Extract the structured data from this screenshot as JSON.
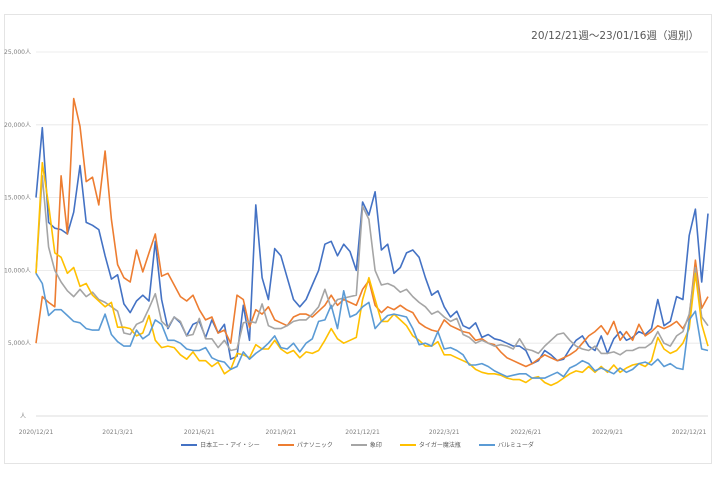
{
  "chart_data": {
    "type": "line",
    "title": "20/12/21週〜23/01/16週（週別）",
    "xlabel": "",
    "ylabel": "",
    "y_unit_suffix": "人",
    "ylim": [
      0,
      25000
    ],
    "yticks": [
      "人",
      "5,000人",
      "10,000人",
      "15,000人",
      "20,000人",
      "25,000人"
    ],
    "ytick_values": [
      0,
      5000,
      10000,
      15000,
      20000,
      25000
    ],
    "x_frequency": "weekly",
    "x_start": "2020/12/21",
    "xticks": [
      {
        "week_index": 0,
        "label": "2020/12/21"
      },
      {
        "week_index": 13,
        "label": "2021/3/21"
      },
      {
        "week_index": 26,
        "label": "2021/6/21"
      },
      {
        "week_index": 39,
        "label": "2021/9/21"
      },
      {
        "week_index": 52,
        "label": "2021/12/21"
      },
      {
        "week_index": 65,
        "label": "2022/3/21"
      },
      {
        "week_index": 78,
        "label": "2022/6/21"
      },
      {
        "week_index": 91,
        "label": "2022/9/21"
      },
      {
        "week_index": 104,
        "label": "2022/12/21"
      }
    ],
    "grid": true,
    "legend_position": "bottom",
    "series": [
      {
        "name": "日本エー・アイ・シー",
        "color": "#4472C4",
        "values_thousands": [
          15.0,
          19.8,
          13.3,
          12.9,
          12.8,
          12.5,
          14.0,
          17.2,
          13.3,
          13.1,
          12.8,
          11.0,
          9.4,
          9.7,
          7.7,
          7.1,
          7.9,
          8.3,
          7.9,
          12.0,
          8.0,
          6.0,
          6.8,
          6.4,
          5.5,
          6.3,
          6.5,
          5.4,
          6.6,
          5.7,
          6.3,
          3.9,
          4.1,
          7.6,
          5.2,
          14.5,
          9.5,
          8.0,
          11.5,
          11.0,
          9.5,
          8.0,
          7.5,
          8.0,
          9.0,
          10.0,
          11.8,
          12.0,
          11.0,
          11.8,
          11.3,
          10.0,
          14.7,
          13.8,
          15.4,
          11.4,
          11.8,
          9.8,
          10.2,
          11.2,
          11.4,
          10.9,
          9.5,
          8.3,
          8.6,
          7.5,
          6.8,
          7.2,
          6.2,
          6.0,
          6.4,
          5.4,
          5.6,
          5.3,
          5.2,
          5.0,
          4.8,
          4.8,
          4.5,
          3.6,
          3.8,
          4.5,
          4.2,
          3.8,
          3.9,
          4.6,
          5.2,
          5.5,
          4.8,
          4.5,
          5.5,
          4.3,
          5.3,
          5.8,
          5.2,
          5.4,
          5.8,
          5.6,
          6.0,
          8.0,
          6.2,
          6.5,
          8.2,
          8.0,
          12.4,
          14.2,
          9.2,
          13.9
        ]
      },
      {
        "name": "パナソニック",
        "color": "#ED7D31",
        "values_thousands": [
          5.0,
          8.2,
          7.8,
          7.5,
          16.5,
          12.5,
          21.8,
          19.9,
          16.1,
          16.4,
          14.5,
          18.2,
          13.5,
          10.4,
          9.5,
          9.2,
          11.4,
          9.9,
          11.2,
          12.5,
          9.6,
          9.8,
          9.0,
          8.2,
          7.9,
          8.3,
          7.3,
          6.6,
          6.8,
          5.7,
          5.9,
          5.0,
          8.3,
          8.0,
          6.1,
          7.3,
          7.0,
          7.5,
          6.6,
          6.4,
          6.2,
          6.8,
          7.0,
          7.0,
          6.8,
          7.2,
          7.6,
          8.3,
          7.6,
          8.0,
          7.8,
          7.6,
          8.7,
          9.3,
          7.6,
          7.1,
          7.5,
          7.3,
          7.6,
          7.3,
          7.1,
          6.4,
          6.1,
          5.9,
          5.8,
          6.6,
          6.2,
          6.0,
          5.8,
          5.7,
          5.2,
          5.3,
          5.0,
          4.9,
          4.4,
          4.0,
          3.8,
          3.6,
          3.4,
          3.6,
          3.9,
          4.2,
          4.0,
          3.8,
          4.0,
          4.2,
          4.5,
          5.0,
          5.5,
          5.8,
          6.2,
          5.6,
          6.5,
          5.2,
          5.8,
          5.2,
          6.3,
          5.5,
          5.8,
          6.2,
          6.0,
          6.2,
          6.5,
          6.0,
          6.8,
          10.7,
          7.4,
          8.2
        ]
      },
      {
        "name": "象印",
        "color": "#A5A5A5",
        "values_thousands": [
          9.8,
          16.5,
          11.6,
          10.0,
          9.2,
          8.6,
          8.2,
          8.7,
          8.2,
          8.5,
          8.0,
          7.8,
          7.5,
          7.2,
          5.7,
          5.6,
          6.3,
          6.5,
          7.4,
          8.4,
          6.5,
          6.1,
          6.8,
          6.5,
          5.5,
          5.6,
          6.7,
          5.3,
          5.3,
          4.7,
          5.2,
          4.5,
          4.6,
          6.4,
          6.5,
          6.4,
          7.7,
          6.2,
          6.0,
          6.0,
          6.2,
          6.5,
          6.6,
          6.6,
          7.0,
          7.5,
          8.7,
          7.4,
          8.0,
          8.1,
          8.2,
          8.3,
          14.4,
          13.5,
          10.0,
          9.0,
          9.1,
          8.9,
          8.5,
          8.7,
          8.2,
          7.8,
          7.5,
          7.0,
          7.2,
          6.8,
          6.5,
          6.7,
          5.6,
          5.4,
          5.0,
          5.2,
          5.0,
          4.8,
          4.9,
          4.8,
          4.6,
          5.3,
          4.6,
          4.5,
          4.3,
          4.8,
          5.2,
          5.6,
          5.7,
          5.2,
          4.8,
          4.6,
          4.5,
          4.8,
          4.3,
          4.3,
          4.4,
          4.2,
          4.5,
          4.5,
          4.7,
          4.7,
          5.0,
          5.8,
          5.0,
          4.8,
          5.5,
          5.8,
          7.0,
          10.2,
          6.8,
          6.2
        ]
      },
      {
        "name": "タイガー魔法瓶",
        "color": "#FFC000",
        "values_thousands": [
          9.8,
          17.4,
          14.5,
          11.2,
          10.9,
          9.8,
          10.2,
          8.9,
          9.1,
          8.3,
          7.9,
          7.5,
          7.8,
          6.1,
          6.1,
          6.0,
          5.5,
          5.7,
          6.9,
          5.2,
          4.7,
          4.8,
          4.7,
          4.2,
          3.9,
          4.4,
          3.8,
          3.8,
          3.4,
          3.7,
          2.9,
          3.2,
          4.3,
          4.2,
          4.0,
          4.9,
          4.6,
          4.6,
          5.2,
          4.6,
          4.3,
          4.5,
          4.0,
          4.4,
          4.3,
          4.5,
          5.2,
          6.0,
          5.3,
          5.0,
          5.2,
          5.4,
          8.0,
          9.5,
          8.0,
          6.5,
          6.5,
          7.0,
          6.6,
          6.2,
          5.5,
          5.2,
          4.8,
          4.8,
          5.1,
          4.2,
          4.2,
          4.0,
          3.8,
          3.6,
          3.2,
          3.0,
          2.9,
          2.9,
          2.8,
          2.6,
          2.5,
          2.5,
          2.3,
          2.6,
          2.7,
          2.3,
          2.1,
          2.3,
          2.6,
          2.9,
          3.1,
          3.0,
          3.4,
          3.0,
          3.4,
          3.0,
          3.5,
          3.0,
          3.3,
          3.5,
          3.6,
          3.4,
          3.8,
          5.4,
          4.6,
          4.3,
          4.5,
          5.0,
          6.0,
          9.8,
          6.3,
          4.8
        ]
      },
      {
        "name": "バルミューダ",
        "color": "#5B9BD5",
        "values_thousands": [
          9.8,
          9.1,
          6.9,
          7.3,
          7.3,
          6.9,
          6.5,
          6.4,
          6.0,
          5.9,
          5.9,
          7.0,
          5.6,
          5.1,
          4.8,
          4.8,
          5.9,
          5.3,
          5.6,
          6.6,
          6.3,
          5.2,
          5.2,
          5.0,
          4.6,
          4.5,
          4.5,
          4.7,
          4.0,
          3.8,
          3.7,
          3.2,
          3.4,
          4.4,
          3.9,
          4.3,
          4.6,
          5.0,
          5.5,
          4.7,
          4.6,
          5.0,
          4.4,
          5.0,
          5.3,
          6.5,
          6.6,
          7.6,
          6.0,
          8.6,
          6.8,
          7.0,
          7.5,
          7.8,
          6.0,
          6.5,
          6.9,
          7.0,
          6.9,
          6.8,
          6.0,
          4.9,
          5.0,
          4.8,
          5.8,
          4.6,
          4.7,
          4.5,
          4.2,
          3.5,
          3.5,
          3.6,
          3.4,
          3.1,
          2.9,
          2.7,
          2.8,
          2.9,
          2.9,
          2.6,
          2.6,
          2.6,
          2.8,
          3.0,
          2.7,
          3.3,
          3.5,
          3.8,
          3.6,
          3.1,
          3.3,
          3.1,
          2.9,
          3.3,
          3.0,
          3.2,
          3.6,
          3.7,
          3.5,
          3.9,
          3.4,
          3.6,
          3.3,
          3.2,
          6.6,
          7.2,
          4.6,
          4.5
        ]
      }
    ]
  }
}
